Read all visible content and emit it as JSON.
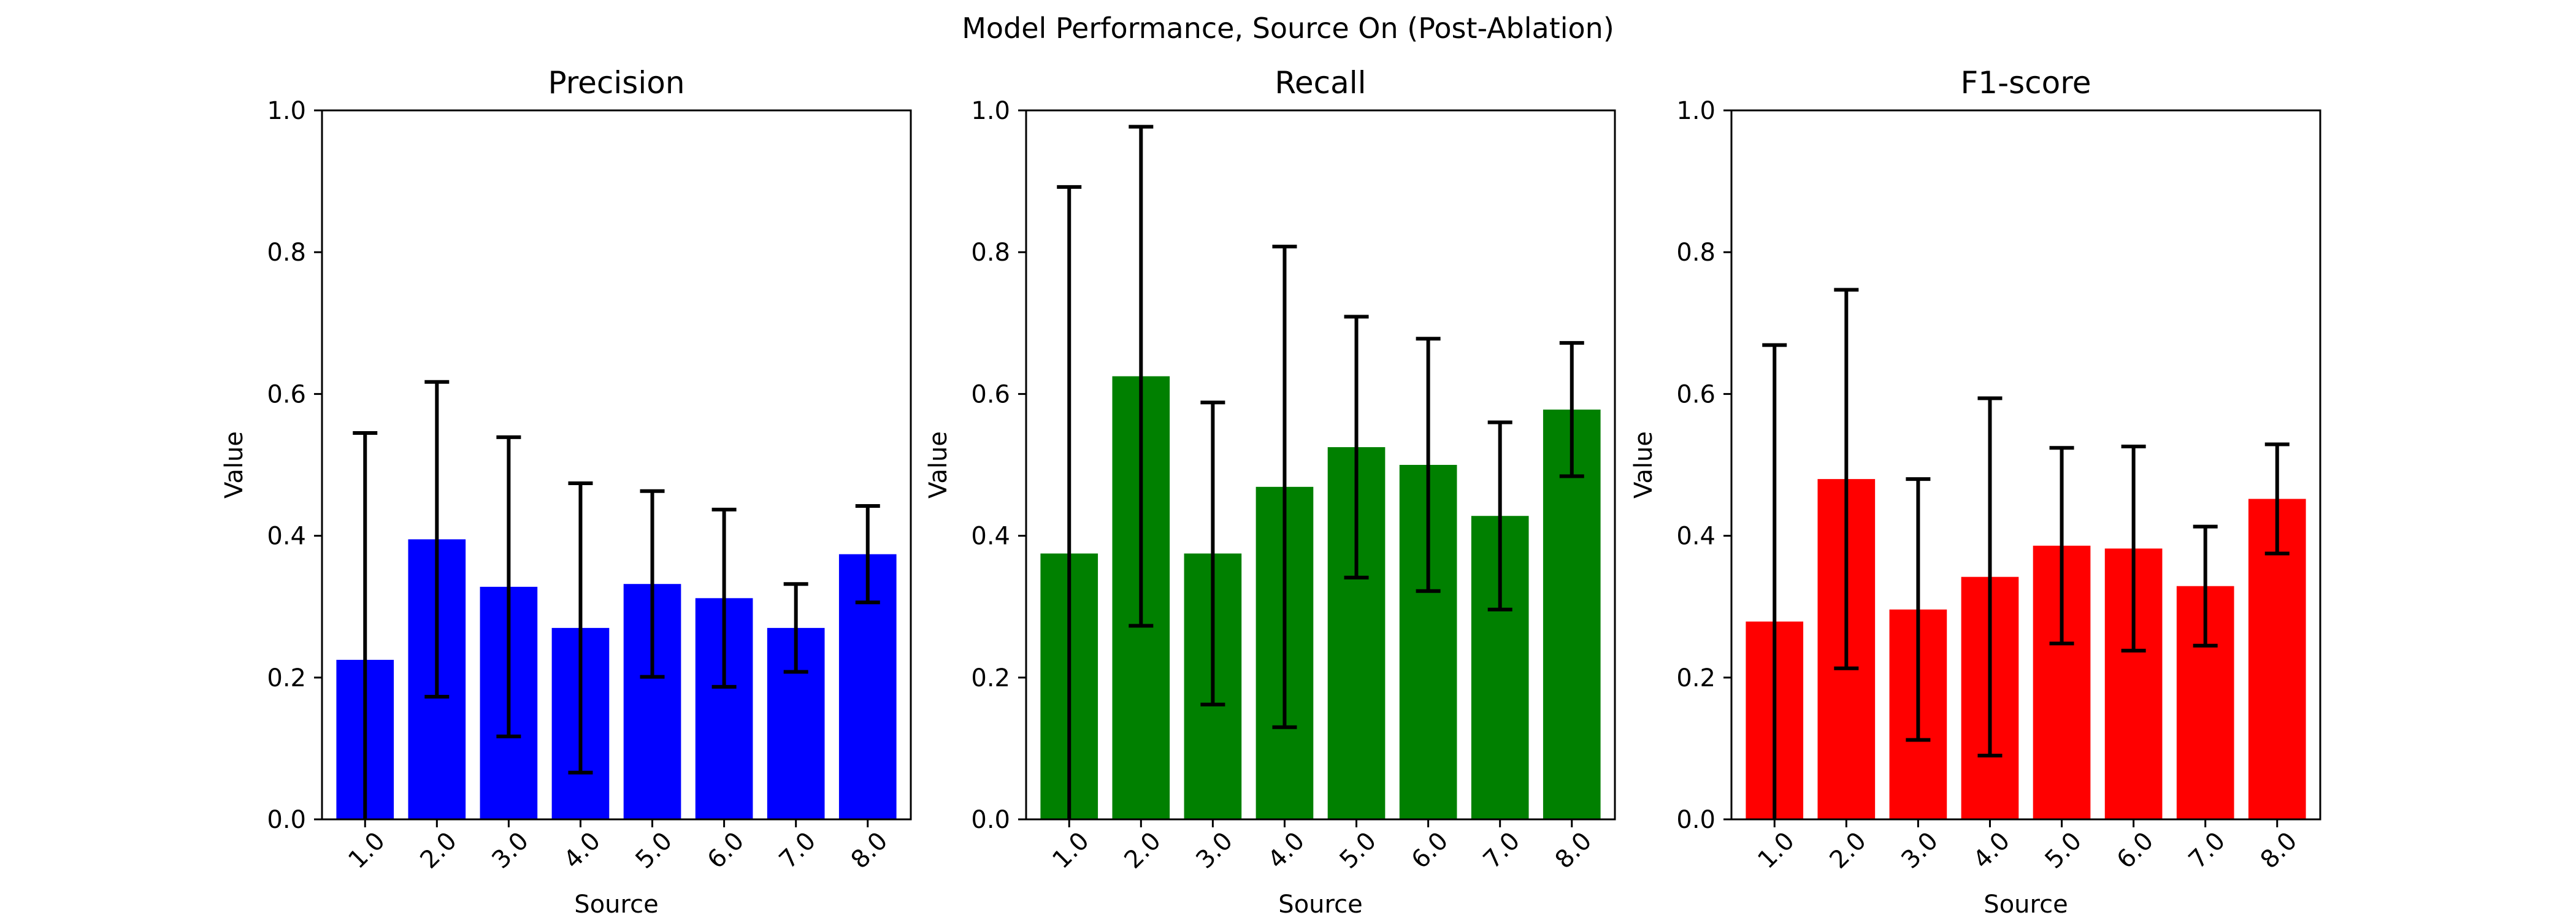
{
  "figure": {
    "title": "Model Performance, Source On (Post-Ablation)"
  },
  "chart_data": [
    {
      "type": "bar",
      "title": "Precision",
      "xlabel": "Source",
      "ylabel": "Value",
      "categories": [
        "1.0",
        "2.0",
        "3.0",
        "4.0",
        "5.0",
        "6.0",
        "7.0",
        "8.0"
      ],
      "values": [
        0.225,
        0.395,
        0.328,
        0.27,
        0.332,
        0.312,
        0.27,
        0.374
      ],
      "error": [
        0.32,
        0.222,
        0.211,
        0.204,
        0.131,
        0.125,
        0.062,
        0.068
      ],
      "ylim": [
        0,
        1
      ],
      "yticks": [
        "0.0",
        "0.2",
        "0.4",
        "0.6",
        "0.8",
        "1.0"
      ],
      "color": "#0000ff",
      "grid": false
    },
    {
      "type": "bar",
      "title": "Recall",
      "xlabel": "Source",
      "ylabel": "Value",
      "categories": [
        "1.0",
        "2.0",
        "3.0",
        "4.0",
        "5.0",
        "6.0",
        "7.0",
        "8.0"
      ],
      "values": [
        0.375,
        0.625,
        0.375,
        0.469,
        0.525,
        0.5,
        0.428,
        0.578
      ],
      "error": [
        0.517,
        0.352,
        0.213,
        0.339,
        0.184,
        0.178,
        0.132,
        0.094
      ],
      "ylim": [
        0,
        1
      ],
      "yticks": [
        "0.0",
        "0.2",
        "0.4",
        "0.6",
        "0.8",
        "1.0"
      ],
      "color": "#008000",
      "grid": false
    },
    {
      "type": "bar",
      "title": "F1-score",
      "xlabel": "Source",
      "ylabel": "Value",
      "categories": [
        "1.0",
        "2.0",
        "3.0",
        "4.0",
        "5.0",
        "6.0",
        "7.0",
        "8.0"
      ],
      "values": [
        0.279,
        0.48,
        0.296,
        0.342,
        0.386,
        0.382,
        0.329,
        0.452
      ],
      "error": [
        0.39,
        0.267,
        0.184,
        0.252,
        0.138,
        0.144,
        0.084,
        0.077
      ],
      "ylim": [
        0,
        1
      ],
      "yticks": [
        "0.0",
        "0.2",
        "0.4",
        "0.6",
        "0.8",
        "1.0"
      ],
      "color": "#ff0000",
      "grid": false
    }
  ]
}
